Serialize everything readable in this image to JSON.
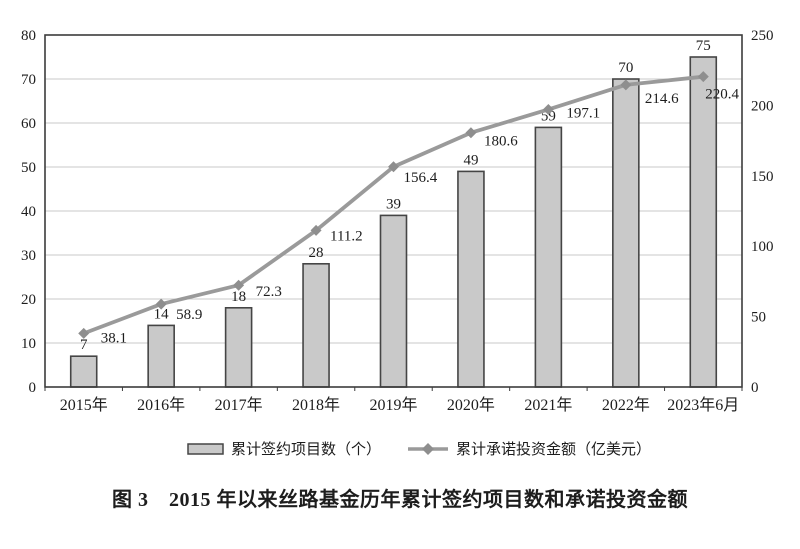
{
  "figure": {
    "caption": "图 3　2015 年以来丝路基金历年累计签约项目数和承诺投资金额"
  },
  "legend": {
    "bars_label": "累计签约项目数（个）",
    "line_label": "累计承诺投资金额（亿美元）"
  },
  "chart_data": {
    "type": "bar+line combo",
    "categories": [
      "2015年",
      "2016年",
      "2017年",
      "2018年",
      "2019年",
      "2020年",
      "2021年",
      "2022年",
      "2023年6月"
    ],
    "series": [
      {
        "name": "累计签约项目数（个）",
        "type": "bar",
        "axis": "left",
        "values": [
          7,
          14,
          18,
          28,
          39,
          49,
          59,
          70,
          75
        ]
      },
      {
        "name": "累计承诺投资金额（亿美元）",
        "type": "line",
        "axis": "right",
        "values": [
          38.1,
          58.9,
          72.3,
          111.2,
          156.4,
          180.6,
          197.1,
          214.6,
          220.4
        ]
      }
    ],
    "left_axis": {
      "min": 0,
      "max": 80,
      "ticks": [
        0,
        10,
        20,
        30,
        40,
        50,
        60,
        70,
        80
      ]
    },
    "right_axis": {
      "min": 0,
      "max": 250,
      "ticks": [
        0,
        50,
        100,
        150,
        200,
        250
      ]
    },
    "grid": true,
    "legend_position": "bottom",
    "colors": {
      "bar_fill": "#c9c9c9",
      "bar_border": "#454545",
      "line": "#9a9a9a",
      "marker": "#8e8e8e",
      "grid": "#c9c9c9",
      "plot_border": "#3c3c3c",
      "text": "#1d1d1d"
    }
  }
}
